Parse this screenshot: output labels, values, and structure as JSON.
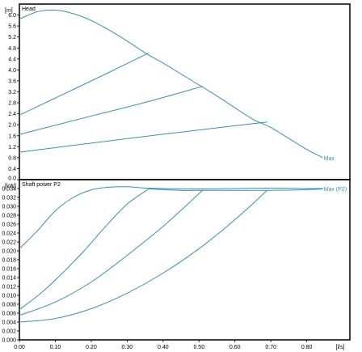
{
  "colors": {
    "curve": "#3a8fb0",
    "frame": "#000000",
    "background": "#ffffff"
  },
  "chart_data": [
    {
      "type": "line",
      "title": "Head",
      "ylabel": "[m]",
      "xlabel": "",
      "xlim": [
        0,
        0.92
      ],
      "ylim": [
        0,
        6.4
      ],
      "yticks": [
        "0.0",
        "0.4",
        "0.8",
        "1.2",
        "1.6",
        "2.0",
        "2.4",
        "2.8",
        "3.2",
        "3.6",
        "4.0",
        "4.4",
        "4.8",
        "5.2",
        "5.6",
        "6.0"
      ],
      "end_label": "Max",
      "series": [
        {
          "x": [
            0,
            0.05,
            0.1,
            0.15,
            0.2,
            0.25,
            0.3,
            0.35,
            0.4,
            0.45,
            0.5,
            0.55,
            0.6,
            0.65,
            0.7,
            0.75,
            0.8,
            0.845
          ],
          "y": [
            5.85,
            6.12,
            6.18,
            6.05,
            5.8,
            5.45,
            5.05,
            4.62,
            4.25,
            3.85,
            3.45,
            3.05,
            2.62,
            2.2,
            1.9,
            1.5,
            1.1,
            0.8
          ]
        },
        {
          "x": [
            0,
            0.12,
            0.24,
            0.36
          ],
          "y": [
            2.35,
            3.1,
            3.85,
            4.62
          ]
        },
        {
          "x": [
            0,
            0.18,
            0.36,
            0.51
          ],
          "y": [
            1.65,
            2.25,
            2.85,
            3.4
          ]
        },
        {
          "x": [
            0,
            0.23,
            0.46,
            0.69
          ],
          "y": [
            1.0,
            1.38,
            1.75,
            2.1
          ]
        }
      ]
    },
    {
      "type": "line",
      "title": "Shaft power P2",
      "ylabel": "[kW]",
      "xlabel": "[l/s]",
      "xlim": [
        0,
        0.92
      ],
      "ylim": [
        0,
        0.036
      ],
      "yticks": [
        "0.000",
        "0.002",
        "0.004",
        "0.006",
        "0.008",
        "0.010",
        "0.012",
        "0.014",
        "0.016",
        "0.018",
        "0.020",
        "0.022",
        "0.024",
        "0.026",
        "0.028",
        "0.030",
        "0.032",
        "0.034"
      ],
      "xticks": [
        "0.00",
        "0.10",
        "0.20",
        "0.30",
        "0.40",
        "0.50",
        "0.60",
        "0.70",
        "0.80"
      ],
      "end_label": "Max (P2)",
      "series": [
        {
          "x": [
            0,
            0.05,
            0.1,
            0.15,
            0.2,
            0.25,
            0.3,
            0.35,
            0.4,
            0.5,
            0.6,
            0.7,
            0.8,
            0.845
          ],
          "y": [
            0.0205,
            0.0245,
            0.029,
            0.032,
            0.0337,
            0.0343,
            0.0344,
            0.0341,
            0.034,
            0.0339,
            0.034,
            0.0341,
            0.034,
            0.034
          ]
        },
        {
          "x": [
            0,
            0.06,
            0.12,
            0.18,
            0.24,
            0.3,
            0.36
          ],
          "y": [
            0.0068,
            0.0105,
            0.015,
            0.02,
            0.0255,
            0.0305,
            0.0339
          ]
        },
        {
          "x": [
            0,
            0.1,
            0.2,
            0.3,
            0.4,
            0.51
          ],
          "y": [
            0.0055,
            0.0085,
            0.013,
            0.019,
            0.0255,
            0.0336
          ]
        },
        {
          "x": [
            0,
            0.1,
            0.2,
            0.3,
            0.4,
            0.5,
            0.6,
            0.69
          ],
          "y": [
            0.004,
            0.0048,
            0.007,
            0.0105,
            0.015,
            0.0205,
            0.027,
            0.0336
          ]
        },
        {
          "x": [
            0.36,
            0.45,
            0.51,
            0.6,
            0.69,
            0.78,
            0.845
          ],
          "y": [
            0.0339,
            0.0336,
            0.0336,
            0.0336,
            0.0336,
            0.0337,
            0.0339
          ]
        }
      ]
    }
  ]
}
